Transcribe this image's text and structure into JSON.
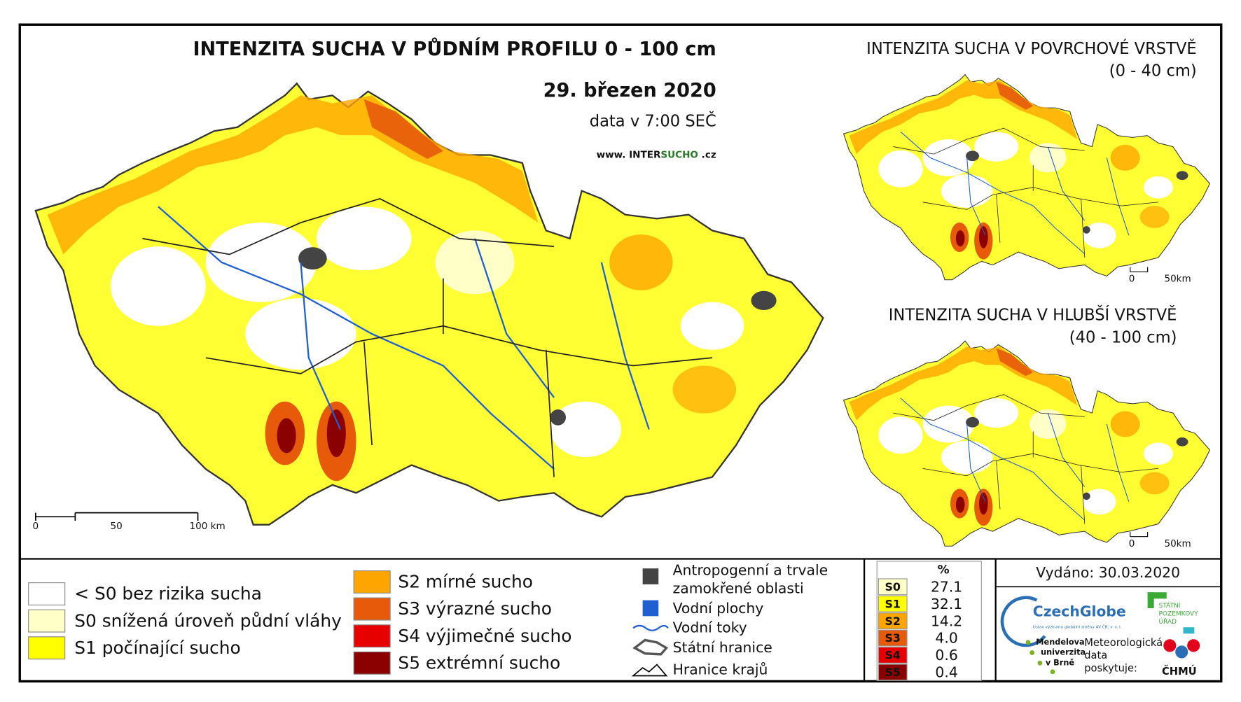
{
  "main_map": {
    "title": "INTENZITA SUCHA V PŮDNÍM PROFILU 0 - 100 cm",
    "date": "29. březen 2020",
    "time": "data v 7:00 SEČ",
    "website": {
      "prefix": "www. INTER",
      "highlight": "SUCHO",
      "suffix": " .cz"
    },
    "scale": [
      "0",
      "50",
      "100 km"
    ]
  },
  "inset_maps": [
    {
      "title": "INTENZITA SUCHA V POVRCHOVÉ VRSTVĚ",
      "subtitle": "(0 - 40 cm)",
      "scale": [
        "0",
        "50km"
      ]
    },
    {
      "title": "INTENZITA SUCHA V HLUBŠÍ VRSTVĚ",
      "subtitle": "(40 - 100 cm)",
      "scale": [
        "0",
        "50km"
      ]
    }
  ],
  "legend": {
    "drought_classes": [
      {
        "label": "< S0 bez rizika sucha",
        "color": "#ffffff"
      },
      {
        "label": "S0 snížená úroveň půdní vláhy",
        "color": "#ffffc8"
      },
      {
        "label": "S1 počínající sucho",
        "color": "#ffff00"
      },
      {
        "label": "S2 mírné sucho",
        "color": "#ffa500"
      },
      {
        "label": "S3 výrazné sucho",
        "color": "#e65a0a"
      },
      {
        "label": "S4 výjimečné sucho",
        "color": "#e60000"
      },
      {
        "label": "S5 extrémní sucho",
        "color": "#8b0000"
      }
    ],
    "features": [
      {
        "lines": [
          "Antropogenní a trvale",
          "zamokřené oblasti"
        ]
      },
      {
        "lines": [
          "Vodní plochy"
        ]
      },
      {
        "lines": [
          "Vodní toky"
        ]
      },
      {
        "lines": [
          "Státní hranice"
        ]
      },
      {
        "lines": [
          "Hranice krajů"
        ]
      }
    ]
  },
  "stats": {
    "header": "%",
    "rows": [
      [
        "S0",
        "27.1"
      ],
      [
        "S1",
        "32.1"
      ],
      [
        "S2",
        "14.2"
      ],
      [
        "S3",
        "4.0"
      ],
      [
        "S4",
        "0.6"
      ],
      [
        "S5",
        "0.4"
      ]
    ]
  },
  "issued": "Vydáno: 30.03.2020",
  "logos": {
    "czechglobe": "CzechGlobe",
    "czechglobe_sub": "Ústav výzkumu globální změny AV ČR, v. v. i.",
    "spu": [
      "STÁTNÍ",
      "POZEMKOVÝ",
      "ÚŘAD"
    ],
    "mendelu": [
      "Mendelova",
      "univerzita",
      "v Brně"
    ],
    "provider": [
      "Meteorologická",
      "data",
      "poskytuje:"
    ],
    "chmu": "ČHMÚ"
  }
}
